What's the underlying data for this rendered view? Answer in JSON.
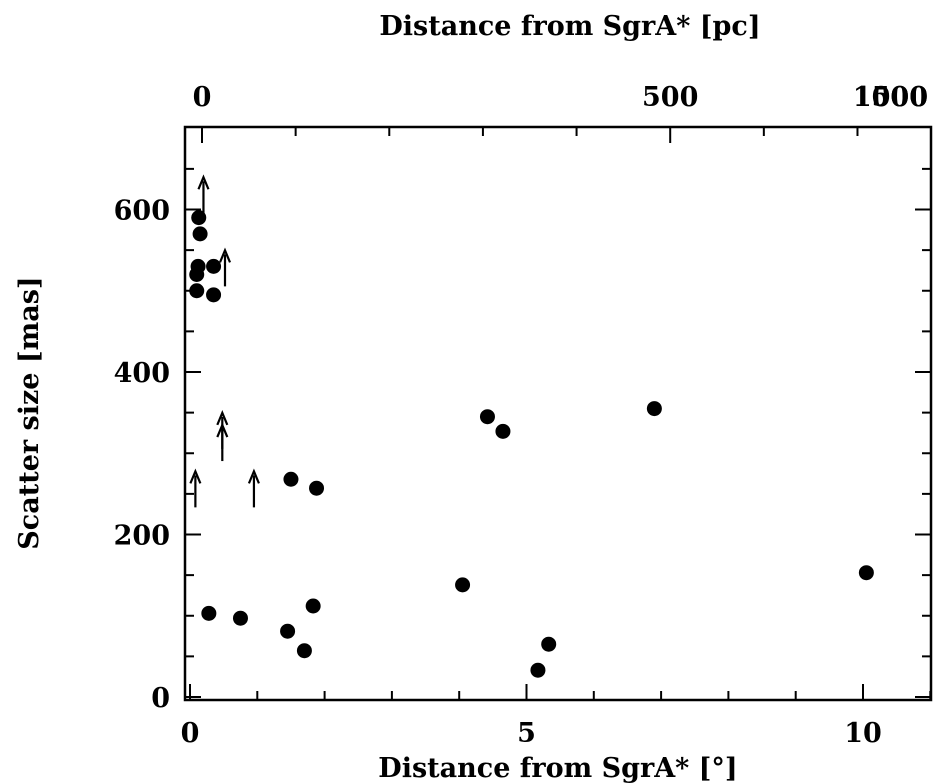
{
  "chart_data": {
    "type": "scatter",
    "xlabel_bottom": "Distance from SgrA* [°]",
    "xlabel_top": "Distance from SgrA* [pc]",
    "ylabel": "Scatter size [mas]",
    "xlim": [
      0,
      11
    ],
    "ylim": [
      0,
      690
    ],
    "x_top_lim": [
      0,
      1580
    ],
    "bottom_ticks": [
      "0",
      "5",
      "10"
    ],
    "top_ticks": [
      "0",
      "500",
      "1000",
      "1500"
    ],
    "y_ticks": [
      "0",
      "200",
      "400",
      "600"
    ],
    "grid": false,
    "series": [
      {
        "marker": "filled-circle",
        "points": [
          {
            "x": 0.13,
            "y": 590
          },
          {
            "x": 0.15,
            "y": 570
          },
          {
            "x": 0.12,
            "y": 530
          },
          {
            "x": 0.1,
            "y": 520
          },
          {
            "x": 0.35,
            "y": 530
          },
          {
            "x": 0.1,
            "y": 500
          },
          {
            "x": 0.35,
            "y": 495
          },
          {
            "x": 1.5,
            "y": 268
          },
          {
            "x": 1.88,
            "y": 257
          },
          {
            "x": 4.42,
            "y": 345
          },
          {
            "x": 4.65,
            "y": 327
          },
          {
            "x": 6.9,
            "y": 355
          },
          {
            "x": 0.28,
            "y": 103
          },
          {
            "x": 0.75,
            "y": 97
          },
          {
            "x": 1.45,
            "y": 81
          },
          {
            "x": 1.7,
            "y": 57
          },
          {
            "x": 1.83,
            "y": 112
          },
          {
            "x": 4.05,
            "y": 138
          },
          {
            "x": 5.17,
            "y": 33
          },
          {
            "x": 5.33,
            "y": 65
          },
          {
            "x": 10.05,
            "y": 153
          }
        ]
      },
      {
        "marker": "up-arrow",
        "points": [
          {
            "x": 0.2,
            "y": 620
          },
          {
            "x": 0.52,
            "y": 530
          },
          {
            "x": 0.48,
            "y": 330
          },
          {
            "x": 0.48,
            "y": 315
          },
          {
            "x": 0.08,
            "y": 258
          },
          {
            "x": 0.95,
            "y": 258
          }
        ]
      }
    ]
  }
}
